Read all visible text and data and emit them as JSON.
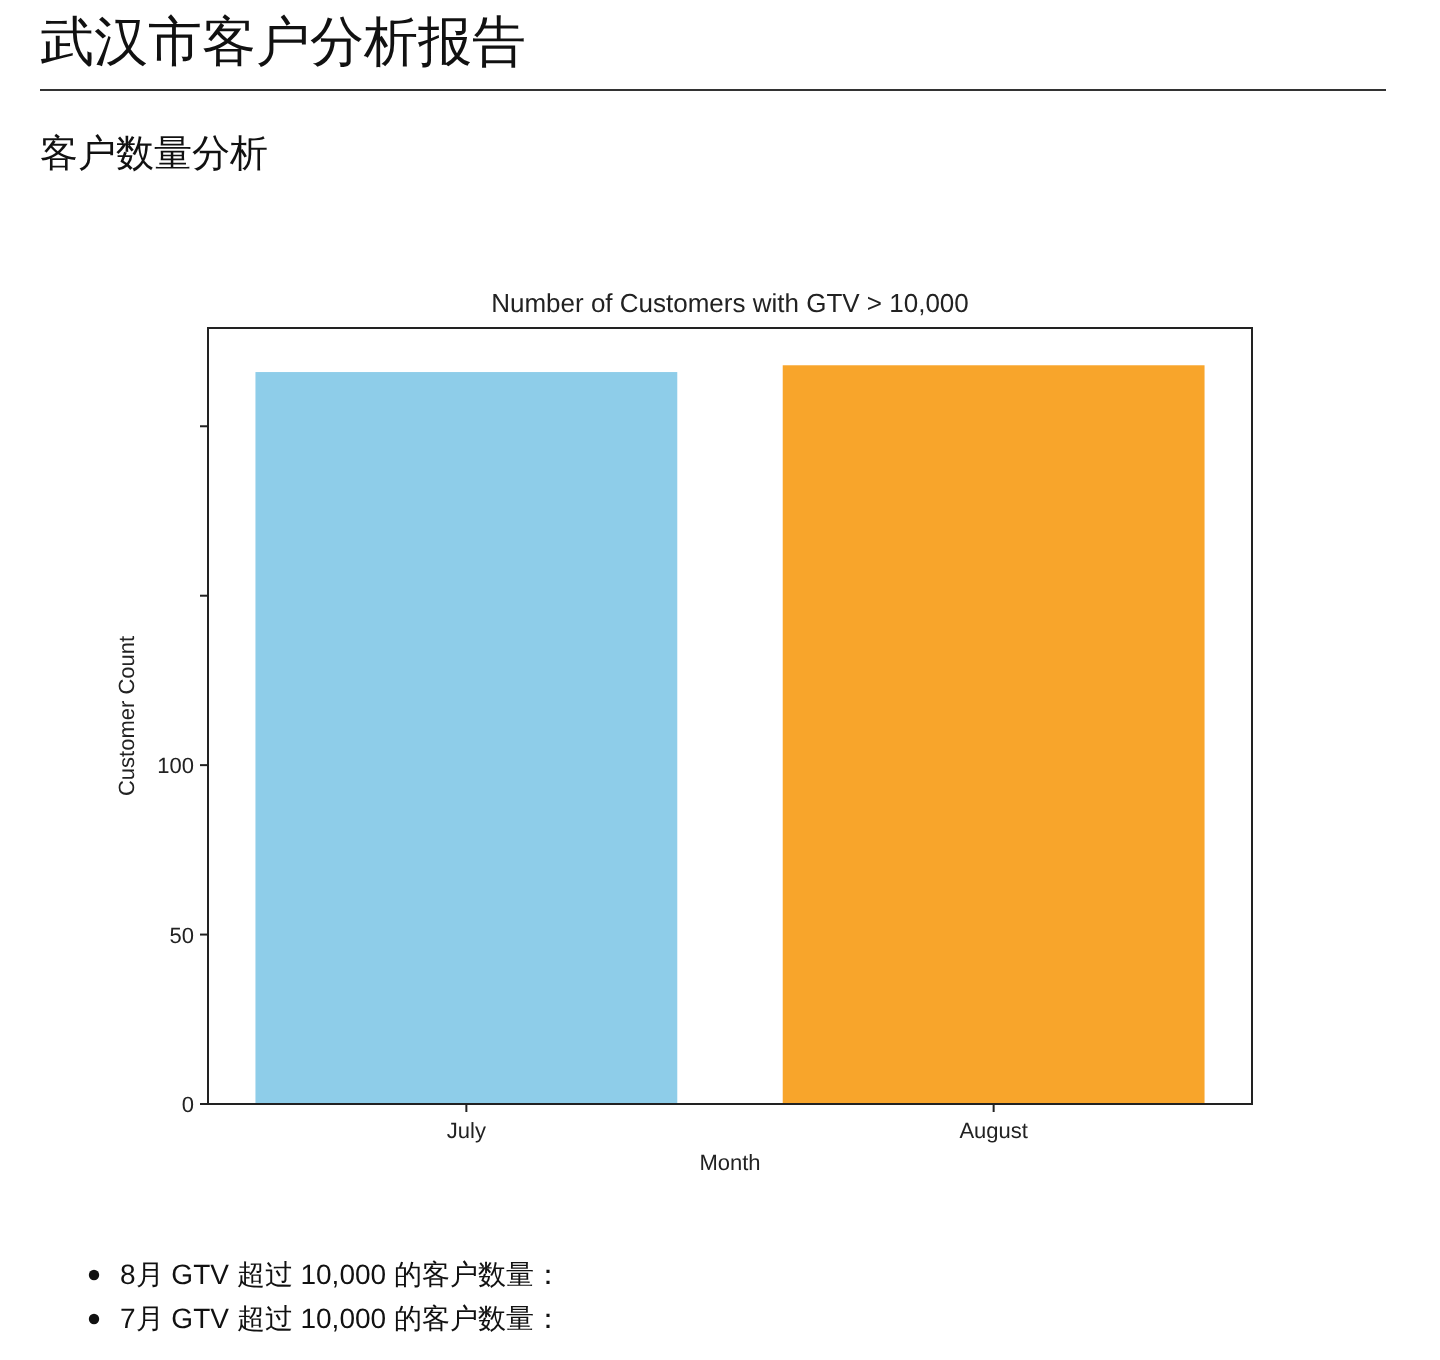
{
  "chart_data": {
    "type": "bar",
    "title": "Number of Customers with GTV > 10,000",
    "xlabel": "Month",
    "ylabel": "Customer Count",
    "categories": [
      "July",
      "August"
    ],
    "values": [
      216,
      218
    ],
    "colors": [
      "#8ecde9",
      "#f8a52b"
    ],
    "ylim": [
      0,
      229
    ],
    "yticks": [
      0,
      50,
      100,
      {
        "value": 150,
        "label": null
      },
      {
        "value": 200,
        "label": null
      }
    ],
    "grid": false,
    "annotations": [
      "武汉市客户分析报告",
      "客户数量分析",
      "8月 GTV 超过 10,000 的客户数量：",
      "7月 GTV 超过 10,000 的客户数量："
    ]
  }
}
